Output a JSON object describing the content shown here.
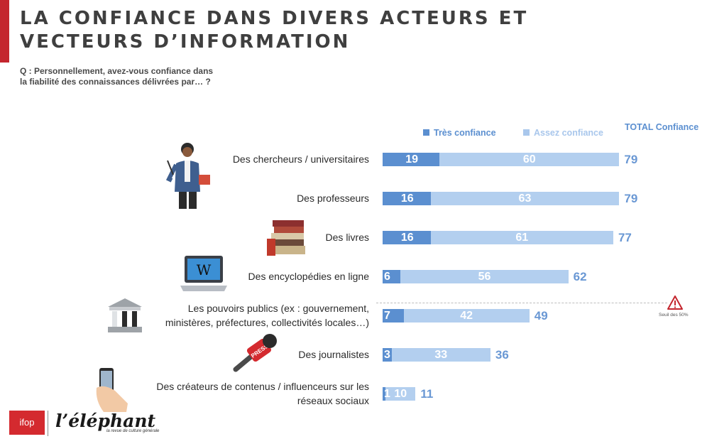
{
  "header": {
    "title_line1": "LA CONFIANCE DANS DIVERS ACTEURS ET",
    "title_line2": "VECTEURS D’INFORMATION",
    "question_line1": "Q : Personnellement, avez-vous confiance dans",
    "question_line2": "la fiabilité des connaissances délivrées par… ?"
  },
  "legend": {
    "tres": "Très confiance",
    "assez": "Assez confiance",
    "total": "TOTAL Confiance"
  },
  "threshold_note": "Seuil des 50%",
  "logos": {
    "ifop": "ifop",
    "elephant": "l’éléphant",
    "elephant_sub": "la revue de culture générale"
  },
  "colors": {
    "tres": "#5b8fd0",
    "assez": "#b3cfef",
    "total": "#6a98d4",
    "accent": "#c4262e"
  },
  "chart_data": {
    "type": "bar",
    "orientation": "horizontal",
    "stacked": true,
    "categories": [
      [
        "Des chercheurs / universitaires"
      ],
      [
        "Des professeurs"
      ],
      [
        "Des livres"
      ],
      [
        "Des encyclopédies en ligne"
      ],
      [
        "Les pouvoirs publics (ex : gouvernement,",
        "ministères, préfectures, collectivités locales…)"
      ],
      [
        "Des journalistes"
      ],
      [
        "Des créateurs de contenus / influenceurs sur les",
        "réseaux sociaux"
      ]
    ],
    "series": [
      {
        "name": "Très confiance",
        "values": [
          19,
          16,
          16,
          6,
          7,
          3,
          1
        ]
      },
      {
        "name": "Assez confiance",
        "values": [
          60,
          63,
          61,
          56,
          42,
          33,
          10
        ]
      }
    ],
    "totals": [
      79,
      79,
      77,
      62,
      49,
      36,
      11
    ],
    "xlim": [
      0,
      100
    ],
    "reference_line": 50,
    "legend_position": "top-right"
  }
}
